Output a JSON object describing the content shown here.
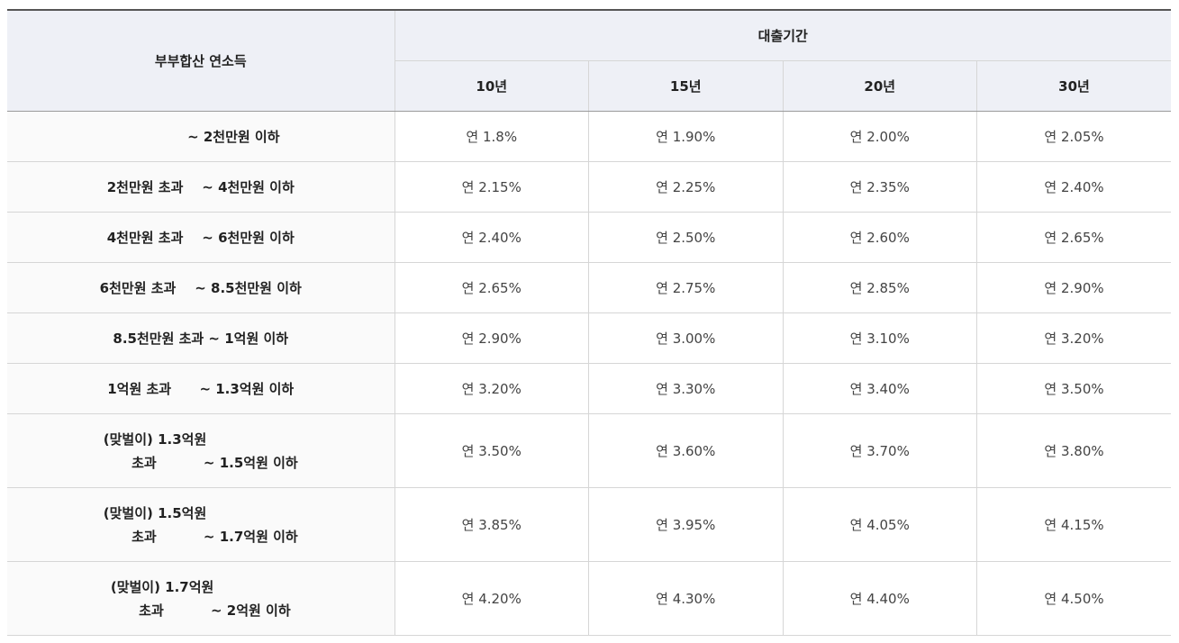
{
  "table": {
    "header": {
      "income_label": "부부합산 연소득",
      "term_group_label": "대출기간",
      "terms": [
        "10년",
        "15년",
        "20년",
        "30년"
      ]
    },
    "rows": [
      {
        "income": "              ~ 2천만원 이하",
        "rates": [
          "연 1.8%",
          "연 1.90%",
          "연 2.00%",
          "연 2.05%"
        ]
      },
      {
        "income": "2천만원 초과    ~ 4천만원 이하",
        "rates": [
          "연 2.15%",
          "연 2.25%",
          "연 2.35%",
          "연 2.40%"
        ]
      },
      {
        "income": "4천만원 초과    ~ 6천만원 이하",
        "rates": [
          "연 2.40%",
          "연 2.50%",
          "연 2.60%",
          "연 2.65%"
        ]
      },
      {
        "income": "6천만원 초과    ~ 8.5천만원 이하",
        "rates": [
          "연 2.65%",
          "연 2.75%",
          "연 2.85%",
          "연 2.90%"
        ]
      },
      {
        "income": "8.5천만원 초과 ~ 1억원 이하",
        "rates": [
          "연 2.90%",
          "연 3.00%",
          "연 3.10%",
          "연 3.20%"
        ]
      },
      {
        "income": "1억원 초과      ~ 1.3억원 이하",
        "rates": [
          "연 3.20%",
          "연 3.30%",
          "연 3.40%",
          "연 3.50%"
        ]
      },
      {
        "income": "(맞벌이) 1.3억원\n      초과          ~ 1.5억원 이하",
        "rates": [
          "연 3.50%",
          "연 3.60%",
          "연 3.70%",
          "연 3.80%"
        ]
      },
      {
        "income": "(맞벌이) 1.5억원\n      초과          ~ 1.7억원 이하",
        "rates": [
          "연 3.85%",
          "연 3.95%",
          "연 4.05%",
          "연 4.15%"
        ]
      },
      {
        "income": "(맞벌이) 1.7억원\n      초과          ~ 2억원 이하",
        "rates": [
          "연 4.20%",
          "연 4.30%",
          "연 4.40%",
          "연 4.50%"
        ]
      }
    ]
  }
}
